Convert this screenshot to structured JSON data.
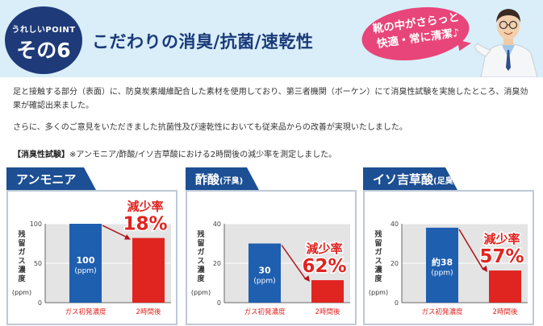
{
  "header": {
    "badge_sub": "うれしいPOINT",
    "badge_num": "その6",
    "title": "こだわりの消臭/抗菌/速乾性",
    "bubble_line1": "靴の中がさらっと",
    "bubble_line2": "快適・常に清潔♪"
  },
  "body": {
    "paragraph1": "足と接触する部分（表面）に、防臭炭素繊維配合した素材を使用しており、第三者機関（ボーケン）にて消臭性試験を実施したところ、消臭効果が確認出来ました。",
    "paragraph2": "さらに、多くのご意見をいただきました抗菌性及び速乾性においても従来品からの改善が実現いたしました。",
    "test_label": "【消臭性試験】",
    "test_note": "※アンモニア/酢酸/イソ吉草酸における2時間後の減少率を測定しました。"
  },
  "colors": {
    "navy": "#1c4f93",
    "bar_blue": "#1f5fb0",
    "bar_red": "#e02420",
    "text_red": "#e02420",
    "bubble": "#e8457a"
  },
  "chart_data": [
    {
      "type": "bar",
      "title": "アンモニア",
      "title_note": "",
      "ylabel": "残留ガス濃度",
      "yunit": "(ppm)",
      "ylim": [
        0,
        100
      ],
      "yticks": [
        "0",
        "50",
        "100"
      ],
      "categories": [
        "ガス初発濃度",
        "2時間後"
      ],
      "values": [
        100,
        82
      ],
      "bar_label_value": "100",
      "bar_label_unit": "(ppm)",
      "reduction_label": "減少率",
      "reduction_value": "18%"
    },
    {
      "type": "bar",
      "title": "酢酸",
      "title_note": "(汗臭)",
      "ylabel": "残留ガス濃度",
      "yunit": "(ppm)",
      "ylim": [
        0,
        40
      ],
      "yticks": [
        "0",
        "20",
        "40"
      ],
      "categories": [
        "ガス初発濃度",
        "2時間後"
      ],
      "values": [
        30,
        11.4
      ],
      "bar_label_value": "30",
      "bar_label_unit": "(ppm)",
      "reduction_label": "減少率",
      "reduction_value": "62%"
    },
    {
      "type": "bar",
      "title": "イソ吉草酸",
      "title_note": "(足臭)",
      "ylabel": "残留ガス濃度",
      "yunit": "(ppm)",
      "ylim": [
        0,
        40
      ],
      "yticks": [
        "0",
        "20",
        "40"
      ],
      "categories": [
        "ガス初発濃度",
        "2時間後"
      ],
      "values": [
        38,
        16.3
      ],
      "bar_label_value": "約38",
      "bar_label_unit": "(ppm)",
      "reduction_label": "減少率",
      "reduction_value": "57%"
    }
  ]
}
